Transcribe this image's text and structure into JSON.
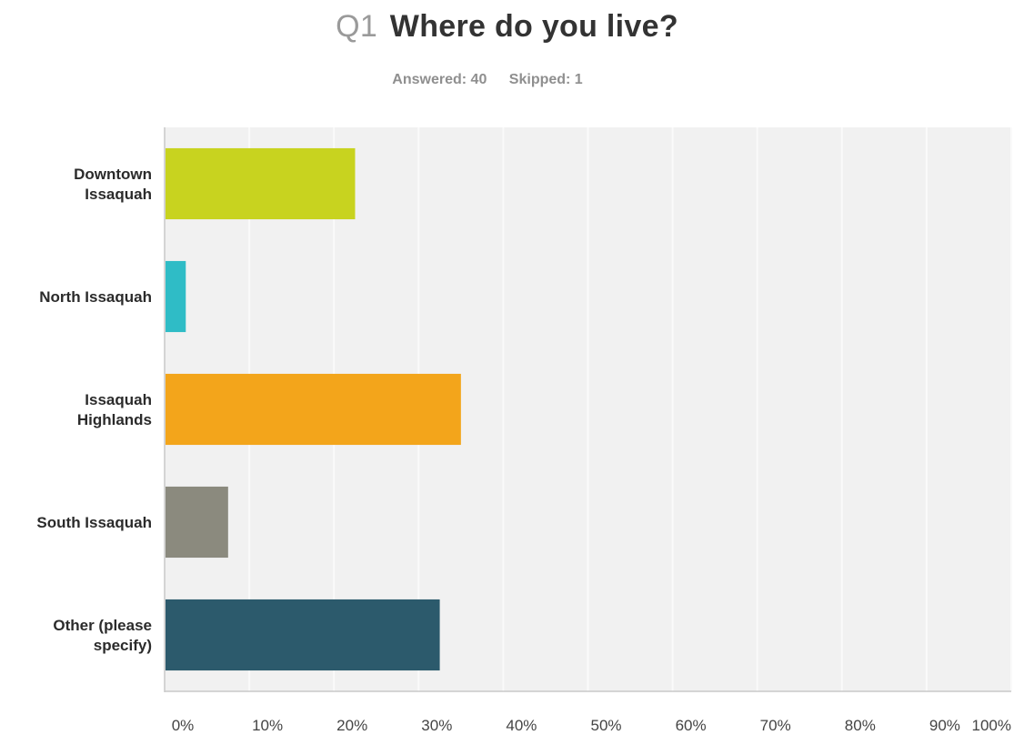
{
  "header": {
    "question_number": "Q1",
    "question_text": "Where do you live?",
    "answered": "Answered: 40",
    "skipped": "Skipped: 1"
  },
  "chart_data": {
    "type": "bar",
    "orientation": "horizontal",
    "title": "Q1 Where do you live?",
    "xlabel": "",
    "ylabel": "",
    "xlim": [
      0,
      100
    ],
    "unit": "%",
    "grid": true,
    "categories": [
      [
        "Downtown",
        "Issaquah"
      ],
      [
        "North Issaquah"
      ],
      [
        "Issaquah",
        "Highlands"
      ],
      [
        "South Issaquah"
      ],
      [
        "Other (please",
        "specify)"
      ]
    ],
    "values": [
      22.5,
      2.5,
      35,
      7.5,
      32.5
    ],
    "colors": [
      "#c8d31f",
      "#2fbcc6",
      "#f3a51b",
      "#8b8a7e",
      "#2c5a6c"
    ],
    "x_tick_labels": [
      "0%",
      "10%",
      "20%",
      "30%",
      "40%",
      "50%",
      "60%",
      "70%",
      "80%",
      "90%",
      "100%"
    ]
  }
}
